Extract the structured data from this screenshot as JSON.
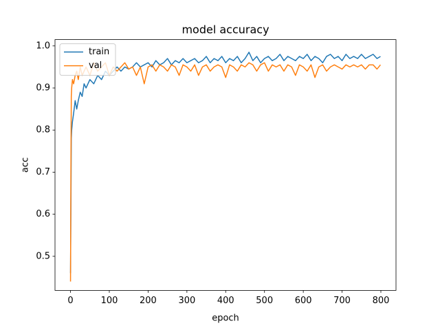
{
  "chart_data": {
    "type": "line",
    "title": "model accuracy",
    "xlabel": "epoch",
    "ylabel": "acc",
    "x": [
      0,
      1,
      2,
      3,
      5,
      8,
      12,
      16,
      20,
      25,
      30,
      35,
      40,
      50,
      60,
      70,
      80,
      90,
      100,
      110,
      120,
      130,
      140,
      150,
      160,
      170,
      180,
      190,
      200,
      210,
      220,
      230,
      240,
      250,
      260,
      270,
      280,
      290,
      300,
      310,
      320,
      330,
      340,
      350,
      360,
      370,
      380,
      390,
      400,
      410,
      420,
      430,
      440,
      450,
      460,
      470,
      480,
      490,
      500,
      510,
      520,
      530,
      540,
      550,
      560,
      570,
      580,
      590,
      600,
      610,
      620,
      630,
      640,
      650,
      660,
      670,
      680,
      690,
      700,
      710,
      720,
      730,
      740,
      750,
      760,
      770,
      780,
      790,
      799
    ],
    "series": [
      {
        "name": "train",
        "color": "#1f77b4",
        "values": [
          0.46,
          0.62,
          0.78,
          0.8,
          0.82,
          0.84,
          0.87,
          0.85,
          0.87,
          0.89,
          0.88,
          0.91,
          0.9,
          0.92,
          0.91,
          0.93,
          0.92,
          0.94,
          0.93,
          0.94,
          0.95,
          0.94,
          0.95,
          0.945,
          0.95,
          0.96,
          0.95,
          0.955,
          0.96,
          0.95,
          0.965,
          0.955,
          0.96,
          0.97,
          0.955,
          0.965,
          0.96,
          0.97,
          0.96,
          0.965,
          0.97,
          0.96,
          0.965,
          0.975,
          0.96,
          0.97,
          0.965,
          0.975,
          0.96,
          0.97,
          0.965,
          0.975,
          0.96,
          0.97,
          0.985,
          0.965,
          0.975,
          0.96,
          0.97,
          0.975,
          0.965,
          0.97,
          0.98,
          0.965,
          0.975,
          0.97,
          0.965,
          0.975,
          0.97,
          0.98,
          0.965,
          0.975,
          0.97,
          0.96,
          0.975,
          0.98,
          0.97,
          0.975,
          0.965,
          0.98,
          0.97,
          0.975,
          0.97,
          0.98,
          0.97,
          0.975,
          0.98,
          0.97,
          0.975
        ]
      },
      {
        "name": "val",
        "color": "#ff7f0e",
        "values": [
          0.44,
          0.7,
          0.88,
          0.9,
          0.92,
          0.91,
          0.93,
          0.94,
          0.92,
          0.95,
          0.93,
          0.94,
          0.95,
          0.93,
          0.96,
          0.94,
          0.95,
          0.96,
          0.93,
          0.95,
          0.94,
          0.95,
          0.96,
          0.945,
          0.95,
          0.93,
          0.95,
          0.91,
          0.95,
          0.955,
          0.94,
          0.955,
          0.95,
          0.94,
          0.955,
          0.95,
          0.93,
          0.955,
          0.95,
          0.94,
          0.955,
          0.93,
          0.95,
          0.955,
          0.94,
          0.95,
          0.955,
          0.95,
          0.925,
          0.955,
          0.95,
          0.94,
          0.955,
          0.95,
          0.96,
          0.955,
          0.94,
          0.955,
          0.96,
          0.94,
          0.955,
          0.95,
          0.955,
          0.94,
          0.955,
          0.95,
          0.93,
          0.955,
          0.95,
          0.94,
          0.955,
          0.925,
          0.95,
          0.955,
          0.94,
          0.95,
          0.955,
          0.95,
          0.945,
          0.955,
          0.95,
          0.955,
          0.95,
          0.955,
          0.945,
          0.955,
          0.955,
          0.945,
          0.955
        ]
      }
    ],
    "xlim": [
      -40,
      839
    ],
    "ylim": [
      0.419,
      1.015
    ],
    "xticks": [
      0,
      100,
      200,
      300,
      400,
      500,
      600,
      700,
      800
    ],
    "yticks": [
      0.5,
      0.6,
      0.7,
      0.8,
      0.9,
      {
        "value": 1,
        "label": "1.0"
      }
    ],
    "legend": "upper left"
  }
}
